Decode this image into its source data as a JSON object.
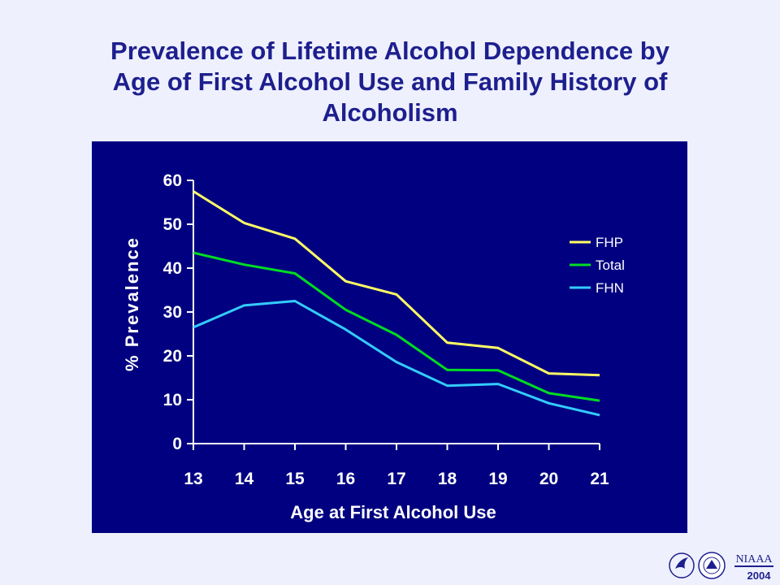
{
  "page": {
    "title_lines": [
      "Prevalence of Lifetime Alcohol Dependence by",
      "Age of First Alcohol Use and Family History of",
      "Alcoholism"
    ]
  },
  "colors": {
    "background": "#eef0fd",
    "title": "#1d1f8e",
    "plot_background": "#000080",
    "FHP": "#ffff66",
    "Total": "#00dd22",
    "FHN": "#33ccff"
  },
  "logos": {
    "hhs": "hhs-eagle-logo",
    "nih": "nih-seal-logo",
    "niaaa_text": "NIAAA",
    "niaaa_year": "2004"
  },
  "chart_data": {
    "type": "line",
    "title": "",
    "xlabel": "Age at First Alcohol Use",
    "ylabel": "% Prevalence",
    "x": [
      13,
      14,
      15,
      16,
      17,
      18,
      19,
      20,
      21
    ],
    "ylim": [
      0,
      60
    ],
    "yticks": [
      0,
      10,
      20,
      30,
      40,
      50,
      60
    ],
    "grid": false,
    "legend_position": "right",
    "series": [
      {
        "name": "FHP",
        "color": "#ffff66",
        "values": [
          57.5,
          50.3,
          46.7,
          37,
          34,
          23,
          21.8,
          16,
          15.6
        ]
      },
      {
        "name": "Total",
        "color": "#00dd22",
        "values": [
          43.5,
          40.8,
          38.8,
          30.5,
          24.8,
          16.8,
          16.7,
          11.5,
          9.8
        ]
      },
      {
        "name": "FHN",
        "color": "#33ccff",
        "values": [
          26.5,
          31.5,
          32.5,
          26,
          18.6,
          13.2,
          13.6,
          9.2,
          6.5
        ]
      }
    ]
  }
}
